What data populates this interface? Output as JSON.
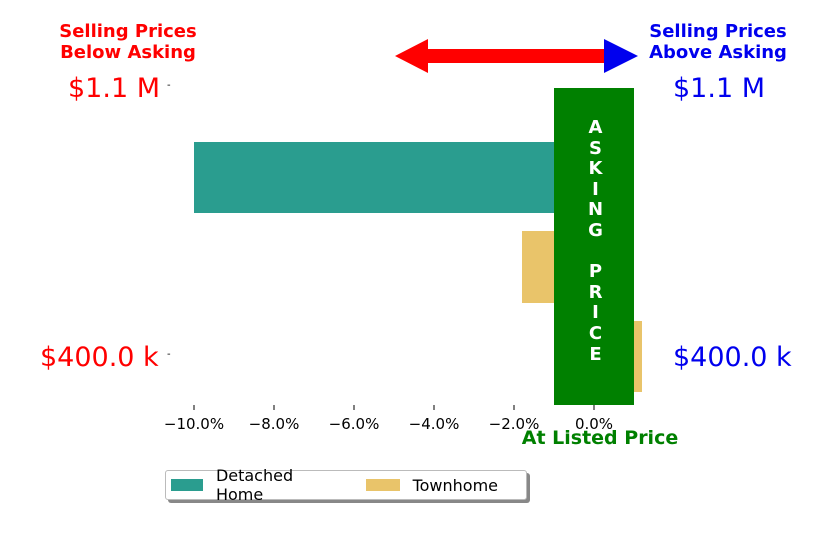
{
  "labels": {
    "below_title_line1": "Selling Prices",
    "below_title_line2": "Below Asking",
    "above_title_line1": "Selling Prices",
    "above_title_line2": "Above Asking",
    "left_top_price": "$1.1 M",
    "left_bottom_price": "$400.0 k",
    "right_top_price": "$1.1 M",
    "right_bottom_price": "$400.0 k",
    "asking_price_letters": [
      "A",
      "S",
      "K",
      "I",
      "N",
      "G",
      " ",
      "P",
      "R",
      "I",
      "C",
      "E"
    ],
    "at_listed_price": "At Listed Price"
  },
  "colors": {
    "below": "#ff0000",
    "above": "#0000ee",
    "asking_band": "#008000",
    "detached": "#2a9d8f",
    "townhome": "#e9c46a"
  },
  "legend": [
    {
      "name": "Detached Home",
      "color": "#2a9d8f"
    },
    {
      "name": "Townhome",
      "color": "#e9c46a"
    }
  ],
  "chart_data": {
    "type": "bar",
    "orientation": "horizontal",
    "xlim": [
      -10.8,
      1.3
    ],
    "x_ticks": [
      "−10.0%",
      "−8.0%",
      "−6.0%",
      "−4.0%",
      "−2.0%",
      "0.0%"
    ],
    "x_tick_values": [
      -10,
      -8,
      -6,
      -4,
      -2,
      0
    ],
    "series": [
      {
        "name": "Detached Home",
        "values": [
          -10.0
        ]
      },
      {
        "name": "Townhome",
        "values": [
          -1.8,
          1.2
        ]
      }
    ],
    "asking_band_range": [
      -1.0,
      1.0
    ],
    "legend_position": "bottom"
  }
}
